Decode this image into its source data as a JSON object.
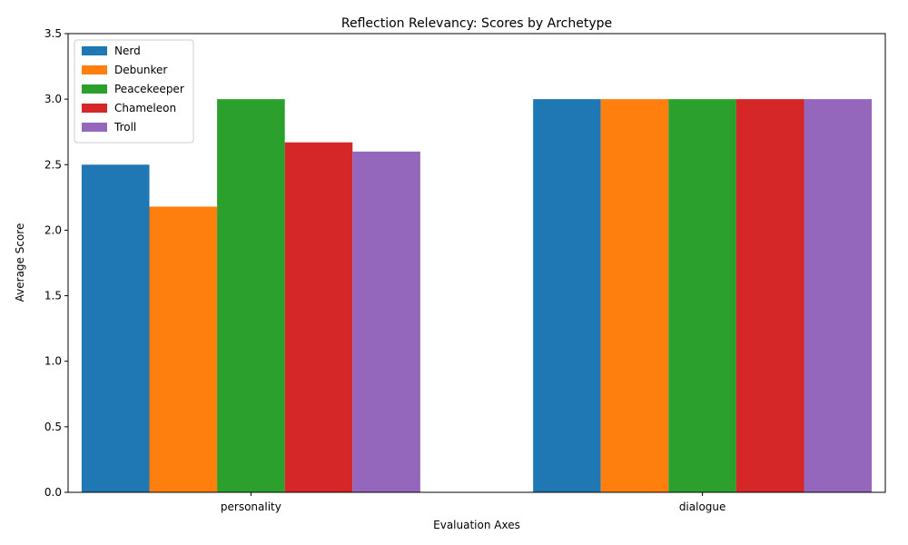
{
  "chart_data": {
    "type": "bar",
    "title": "Reflection Relevancy: Scores by Archetype",
    "xlabel": "Evaluation Axes",
    "ylabel": "Average Score",
    "categories": [
      "personality",
      "dialogue"
    ],
    "ylim": [
      0,
      3.5
    ],
    "yticks": [
      "0.0",
      "0.5",
      "1.0",
      "1.5",
      "2.0",
      "2.5",
      "3.0",
      "3.5"
    ],
    "grid": false,
    "legend_position": "top-left",
    "series": [
      {
        "name": "Nerd",
        "color": "#1f77b4",
        "values": [
          2.5,
          3.0
        ]
      },
      {
        "name": "Debunker",
        "color": "#ff7f0e",
        "values": [
          2.18,
          3.0
        ]
      },
      {
        "name": "Peacekeeper",
        "color": "#2ca02c",
        "values": [
          3.0,
          3.0
        ]
      },
      {
        "name": "Chameleon",
        "color": "#d62728",
        "values": [
          2.67,
          3.0
        ]
      },
      {
        "name": "Troll",
        "color": "#9467bd",
        "values": [
          2.6,
          3.0
        ]
      }
    ]
  }
}
